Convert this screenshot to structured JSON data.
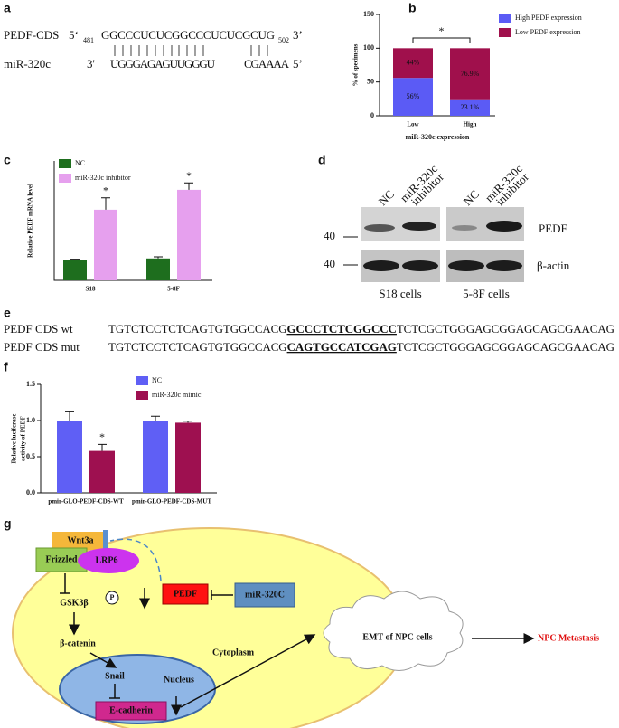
{
  "panel_labels": [
    "a",
    "b",
    "c",
    "d",
    "e",
    "f",
    "g"
  ],
  "alignment": {
    "target_name": "PEDF-CDS",
    "target_5": "5‘",
    "target_start": "481",
    "target_seq": "GGCCCUCUCGGCCCUCUCGCUG",
    "target_end": "502",
    "target_3": "3’",
    "mirna_name": "miR-320c",
    "mirna_3": "3'",
    "mirna_seq_1": "UGGGAGAGUUGGGU",
    "mirna_seq_2": "CGAAAA",
    "mirna_5": "5’"
  },
  "chart_data": [
    {
      "type": "stacked_bar",
      "categories": [
        "Low",
        "High"
      ],
      "xlabel": "miR-320c expression",
      "ylabel": "% of specimens",
      "ylim": [
        0,
        150
      ],
      "yticks": [
        0,
        50,
        100,
        150
      ],
      "series": [
        {
          "name": "High PEDF expression",
          "color": "#5b5bf5",
          "values": [
            56,
            23.1
          ],
          "value_labels": [
            "56%",
            "23.1%"
          ]
        },
        {
          "name": "Low PEDF expression",
          "color": "#a0104c",
          "values": [
            44,
            76.9
          ],
          "value_labels": [
            "44%",
            "76.9%"
          ]
        }
      ],
      "annotation": "*"
    },
    {
      "type": "grouped_bar",
      "categories": [
        "S18",
        "5-8F"
      ],
      "ylabel": "Relative PEDF mRNA level",
      "ylim": [
        0,
        6
      ],
      "series": [
        {
          "name": "NC",
          "color": "#1e6e1e",
          "values": [
            1.0,
            1.1
          ],
          "errors": [
            0.06,
            0.08
          ]
        },
        {
          "name": "miR-320c inhibitor",
          "color": "#e6a0ee",
          "values": [
            3.55,
            4.55
          ],
          "errors": [
            0.6,
            0.35
          ]
        }
      ],
      "annotations": [
        "*",
        "*"
      ]
    },
    {
      "type": "grouped_bar",
      "categories": [
        "pmir-GLO-PEDF-CDS-WT",
        "pmir-GLO-PEDF-CDS-MUT"
      ],
      "ylabel": [
        "Relative luciferase",
        "activity of PEDF"
      ],
      "ylim": [
        0,
        1.5
      ],
      "yticks": [
        {
          "value": 0,
          "label": "0.0"
        },
        0.5,
        {
          "value": 1,
          "label": "1.0"
        },
        1.5
      ],
      "series": [
        {
          "name": "NC",
          "color": "#5f5ff5",
          "values": [
            1.0,
            1.0
          ],
          "errors": [
            0.12,
            0.06
          ]
        },
        {
          "name": "miR-320c mimic",
          "color": "#9e1050",
          "values": [
            0.58,
            0.97
          ],
          "errors": [
            0.09,
            0.02
          ]
        }
      ],
      "annotations": [
        "*"
      ]
    }
  ],
  "western_blot": {
    "lanes": [
      [
        "NC"
      ],
      [
        "miR-320c",
        "inhibitor"
      ],
      [
        "NC"
      ],
      [
        "miR-320c",
        "inhibitor"
      ]
    ],
    "proteins": [
      "PEDF",
      "β-actin"
    ],
    "markers": [
      "40",
      "40"
    ],
    "cells": [
      "S18 cells",
      "5-8F cells"
    ]
  },
  "sequences": {
    "rows": [
      {
        "name": "PEDF CDS wt",
        "prefix": "TGTCTCCTCTCAGTGTGGCCACG",
        "site": "GCCCTCTCGGCCC",
        "suffix": "TCTCGCTGGGAGCGGAGCAGCGAACAG"
      },
      {
        "name": "PEDF CDS mut",
        "prefix": "TGTCTCCTCTCAGTGTGGCCACG",
        "site": "CAGTGCCATCGAG",
        "suffix": "TCTCGCTGGGAGCGGAGCAGCGAACAG"
      }
    ]
  },
  "pathway": {
    "wnt": "Wnt3a",
    "frizzled": "Frizzled",
    "lrp6": "LRP6",
    "gsk": "GSK3β",
    "phospho": "P",
    "catenin": "β-catenin",
    "snail": "Snail",
    "ecad": "E-cadherin",
    "nucleus": "Nucleus",
    "cytoplasm": "Cytoplasm",
    "pedf": "PEDF",
    "mir": "miR-320C",
    "emt": "EMT of NPC cells",
    "metastasis": "NPC Metastasis"
  }
}
